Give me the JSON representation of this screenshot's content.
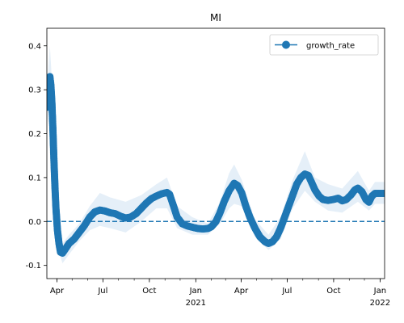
{
  "chart_data": {
    "type": "line",
    "title": "MI",
    "xlabel": "",
    "ylabel": "",
    "ylim": [
      -0.13,
      0.44
    ],
    "xlim": [
      "2020-03-12",
      "2022-01-10"
    ],
    "grid": false,
    "legend": {
      "position": "top-right",
      "entries": [
        "growth_rate"
      ]
    },
    "reference_line": {
      "y": 0,
      "style": "dashed"
    },
    "colors": {
      "series": "#1f77b4",
      "band": "#cfe1f2",
      "axis": "#000000"
    },
    "y_ticks": [
      "-0.1",
      "0.0",
      "0.1",
      "0.2",
      "0.3",
      "0.4"
    ],
    "x_tick_labels": [
      {
        "date": "2020-04-01",
        "label": "Apr"
      },
      {
        "date": "2020-07-01",
        "label": "Jul"
      },
      {
        "date": "2020-10-01",
        "label": "Oct"
      },
      {
        "date": "2021-01-01",
        "label": "Jan",
        "sublabel": "2021"
      },
      {
        "date": "2021-04-01",
        "label": "Apr"
      },
      {
        "date": "2021-07-01",
        "label": "Jul"
      },
      {
        "date": "2021-10-01",
        "label": "Oct"
      },
      {
        "date": "2022-01-01",
        "label": "Jan",
        "sublabel": "2022"
      }
    ],
    "series": [
      {
        "name": "growth_rate",
        "points": [
          [
            "2020-03-12",
            0.26
          ],
          [
            "2020-03-15",
            0.3
          ],
          [
            "2020-03-18",
            0.33
          ],
          [
            "2020-03-20",
            0.31
          ],
          [
            "2020-03-22",
            0.27
          ],
          [
            "2020-03-24",
            0.21
          ],
          [
            "2020-03-26",
            0.14
          ],
          [
            "2020-03-28",
            0.08
          ],
          [
            "2020-03-30",
            0.03
          ],
          [
            "2020-04-02",
            -0.02
          ],
          [
            "2020-04-05",
            -0.05
          ],
          [
            "2020-04-08",
            -0.07
          ],
          [
            "2020-04-12",
            -0.072
          ],
          [
            "2020-04-18",
            -0.062
          ],
          [
            "2020-04-25",
            -0.05
          ],
          [
            "2020-05-05",
            -0.04
          ],
          [
            "2020-05-15",
            -0.025
          ],
          [
            "2020-05-25",
            -0.01
          ],
          [
            "2020-06-05",
            0.01
          ],
          [
            "2020-06-15",
            0.022
          ],
          [
            "2020-06-25",
            0.026
          ],
          [
            "2020-07-05",
            0.024
          ],
          [
            "2020-07-15",
            0.02
          ],
          [
            "2020-07-25",
            0.018
          ],
          [
            "2020-08-05",
            0.012
          ],
          [
            "2020-08-15",
            0.008
          ],
          [
            "2020-08-25",
            0.01
          ],
          [
            "2020-09-05",
            0.018
          ],
          [
            "2020-09-15",
            0.03
          ],
          [
            "2020-09-25",
            0.042
          ],
          [
            "2020-10-05",
            0.052
          ],
          [
            "2020-10-15",
            0.058
          ],
          [
            "2020-10-25",
            0.063
          ],
          [
            "2020-11-05",
            0.066
          ],
          [
            "2020-11-10",
            0.062
          ],
          [
            "2020-11-18",
            0.035
          ],
          [
            "2020-11-25",
            0.01
          ],
          [
            "2020-12-05",
            -0.005
          ],
          [
            "2020-12-15",
            -0.01
          ],
          [
            "2020-12-25",
            -0.013
          ],
          [
            "2021-01-05",
            -0.016
          ],
          [
            "2021-01-15",
            -0.017
          ],
          [
            "2021-01-25",
            -0.016
          ],
          [
            "2021-02-01",
            -0.012
          ],
          [
            "2021-02-10",
            0.0
          ],
          [
            "2021-02-18",
            0.02
          ],
          [
            "2021-02-26",
            0.045
          ],
          [
            "2021-03-08",
            0.07
          ],
          [
            "2021-03-18",
            0.087
          ],
          [
            "2021-03-25",
            0.082
          ],
          [
            "2021-04-02",
            0.065
          ],
          [
            "2021-04-10",
            0.035
          ],
          [
            "2021-04-18",
            0.01
          ],
          [
            "2021-04-28",
            -0.015
          ],
          [
            "2021-05-08",
            -0.035
          ],
          [
            "2021-05-18",
            -0.046
          ],
          [
            "2021-05-25",
            -0.05
          ],
          [
            "2021-06-02",
            -0.046
          ],
          [
            "2021-06-10",
            -0.035
          ],
          [
            "2021-06-18",
            -0.015
          ],
          [
            "2021-06-26",
            0.01
          ],
          [
            "2021-07-04",
            0.035
          ],
          [
            "2021-07-12",
            0.06
          ],
          [
            "2021-07-20",
            0.085
          ],
          [
            "2021-07-28",
            0.1
          ],
          [
            "2021-08-05",
            0.108
          ],
          [
            "2021-08-12",
            0.105
          ],
          [
            "2021-08-18",
            0.09
          ],
          [
            "2021-08-25",
            0.072
          ],
          [
            "2021-09-02",
            0.058
          ],
          [
            "2021-09-10",
            0.05
          ],
          [
            "2021-09-20",
            0.048
          ],
          [
            "2021-09-30",
            0.05
          ],
          [
            "2021-10-10",
            0.053
          ],
          [
            "2021-10-18",
            0.047
          ],
          [
            "2021-10-26",
            0.05
          ],
          [
            "2021-11-04",
            0.06
          ],
          [
            "2021-11-12",
            0.072
          ],
          [
            "2021-11-18",
            0.076
          ],
          [
            "2021-11-26",
            0.068
          ],
          [
            "2021-12-04",
            0.05
          ],
          [
            "2021-12-10",
            0.044
          ],
          [
            "2021-12-16",
            0.058
          ],
          [
            "2021-12-22",
            0.064
          ],
          [
            "2022-01-01",
            0.064
          ],
          [
            "2022-01-10",
            0.064
          ]
        ],
        "band": [
          [
            "2020-03-12",
            0.22,
            0.3
          ],
          [
            "2020-03-18",
            0.28,
            0.4
          ],
          [
            "2020-03-22",
            0.23,
            0.32
          ],
          [
            "2020-03-26",
            0.12,
            0.17
          ],
          [
            "2020-03-30",
            0.01,
            0.05
          ],
          [
            "2020-04-05",
            -0.07,
            -0.03
          ],
          [
            "2020-04-12",
            -0.095,
            -0.05
          ],
          [
            "2020-04-25",
            -0.075,
            -0.03
          ],
          [
            "2020-05-15",
            -0.045,
            -0.005
          ],
          [
            "2020-06-05",
            -0.02,
            0.035
          ],
          [
            "2020-06-25",
            -0.01,
            0.065
          ],
          [
            "2020-07-15",
            -0.015,
            0.055
          ],
          [
            "2020-08-15",
            -0.025,
            0.045
          ],
          [
            "2020-09-15",
            0.0,
            0.06
          ],
          [
            "2020-10-15",
            0.03,
            0.085
          ],
          [
            "2020-11-05",
            0.03,
            0.1
          ],
          [
            "2020-11-25",
            -0.015,
            0.035
          ],
          [
            "2020-12-25",
            -0.03,
            0.01
          ],
          [
            "2021-01-25",
            -0.03,
            -0.005
          ],
          [
            "2021-02-18",
            -0.005,
            0.045
          ],
          [
            "2021-03-08",
            0.03,
            0.11
          ],
          [
            "2021-03-18",
            0.04,
            0.13
          ],
          [
            "2021-04-02",
            0.035,
            0.095
          ],
          [
            "2021-04-28",
            -0.035,
            0.005
          ],
          [
            "2021-05-25",
            -0.065,
            -0.03
          ],
          [
            "2021-06-18",
            -0.04,
            0.01
          ],
          [
            "2021-07-12",
            0.03,
            0.095
          ],
          [
            "2021-08-05",
            0.07,
            0.16
          ],
          [
            "2021-08-25",
            0.045,
            0.1
          ],
          [
            "2021-09-20",
            0.025,
            0.085
          ],
          [
            "2021-10-18",
            0.02,
            0.075
          ],
          [
            "2021-11-18",
            0.045,
            0.115
          ],
          [
            "2021-12-10",
            0.025,
            0.07
          ],
          [
            "2021-12-22",
            0.04,
            0.09
          ],
          [
            "2022-01-10",
            0.04,
            0.09
          ]
        ]
      }
    ]
  }
}
